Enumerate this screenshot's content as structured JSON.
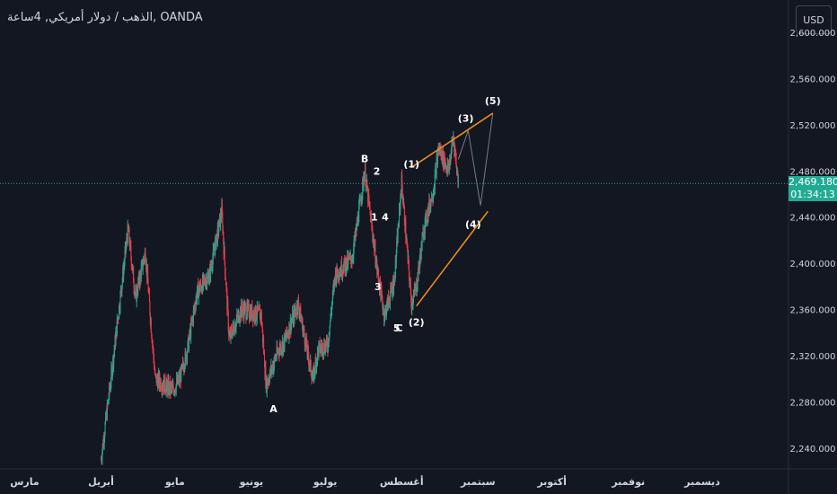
{
  "header": {
    "symbol_title": "الذهب / دولار أمريكي, 4ساعة, OANDA",
    "currency_label": "USD"
  },
  "last_price": {
    "value": "2,469.180",
    "countdown": "01:34:13"
  },
  "colors": {
    "background": "#131722",
    "bull": "#22ab94",
    "bear": "#f23645",
    "trendline": "#f7931a",
    "projection": "#787b86",
    "text": "#d1d4dc"
  },
  "chart_data": {
    "type": "candlestick",
    "title": "الذهب / دولار أمريكي, 4ساعة, OANDA",
    "y_axis": {
      "ylim": [
        2222,
        2628
      ],
      "ticks": [
        "2,240.000",
        "2,280.000",
        "2,320.000",
        "2,360.000",
        "2,400.000",
        "2,440.000",
        "2,480.000",
        "2,520.000",
        "2,560.000",
        "2,600.000"
      ],
      "tick_values": [
        2240,
        2280,
        2320,
        2360,
        2400,
        2440,
        2480,
        2520,
        2560,
        2600
      ]
    },
    "x_axis": {
      "labels": [
        "مارس",
        "أبريل",
        "مايو",
        "يونيو",
        "يوليو",
        "أغسطس",
        "سبتمبر",
        "أكتوبر",
        "نوفمبر",
        "ديسمبر"
      ],
      "label_dates": [
        "2024-03-01",
        "2024-04-01",
        "2024-05-01",
        "2024-06-01",
        "2024-07-01",
        "2024-08-01",
        "2024-09-01",
        "2024-10-01",
        "2024-11-01",
        "2024-12-01"
      ],
      "range": [
        "2024-02-20",
        "2025-01-05"
      ]
    },
    "price_path": [
      [
        "2024-04-01",
        2230
      ],
      [
        "2024-04-05",
        2300
      ],
      [
        "2024-04-12",
        2430
      ],
      [
        "2024-04-15",
        2370
      ],
      [
        "2024-04-19",
        2410
      ],
      [
        "2024-04-23",
        2300
      ],
      [
        "2024-04-30",
        2290
      ],
      [
        "2024-05-03",
        2300
      ],
      [
        "2024-05-06",
        2325
      ],
      [
        "2024-05-10",
        2375
      ],
      [
        "2024-05-15",
        2390
      ],
      [
        "2024-05-20",
        2445
      ],
      [
        "2024-05-23",
        2335
      ],
      [
        "2024-05-28",
        2360
      ],
      [
        "2024-06-05",
        2355
      ],
      [
        "2024-06-07",
        2295
      ],
      [
        "2024-06-12",
        2325
      ],
      [
        "2024-06-14",
        2330
      ],
      [
        "2024-06-20",
        2365
      ],
      [
        "2024-06-24",
        2320
      ],
      [
        "2024-06-26",
        2300
      ],
      [
        "2024-06-28",
        2325
      ],
      [
        "2024-07-02",
        2330
      ],
      [
        "2024-07-05",
        2390
      ],
      [
        "2024-07-12",
        2405
      ],
      [
        "2024-07-17",
        2480
      ],
      [
        "2024-07-22",
        2395
      ],
      [
        "2024-07-25",
        2355
      ],
      [
        "2024-07-29",
        2385
      ],
      [
        "2024-08-01",
        2470
      ],
      [
        "2024-08-05",
        2365
      ],
      [
        "2024-08-07",
        2380
      ],
      [
        "2024-08-10",
        2430
      ],
      [
        "2024-08-14",
        2465
      ],
      [
        "2024-08-16",
        2500
      ],
      [
        "2024-08-20",
        2480
      ],
      [
        "2024-08-22",
        2510
      ],
      [
        "2024-08-24",
        2470
      ]
    ],
    "markers": [
      {
        "label": "A",
        "date": "2024-06-10",
        "price": 2285,
        "pos": "below"
      },
      {
        "label": "B",
        "date": "2024-07-17",
        "price": 2480,
        "pos": "above"
      },
      {
        "label": "C",
        "date": "2024-07-31",
        "price": 2355,
        "pos": "below"
      },
      {
        "label": "1",
        "date": "2024-07-18",
        "price": 2440,
        "pos": "right"
      },
      {
        "label": "2",
        "date": "2024-07-19",
        "price": 2480,
        "pos": "right"
      },
      {
        "label": "3",
        "date": "2024-07-26",
        "price": 2380,
        "pos": "left"
      },
      {
        "label": "4",
        "date": "2024-07-29",
        "price": 2440,
        "pos": "left"
      },
      {
        "label": "5",
        "date": "2024-07-30",
        "price": 2355,
        "pos": "below"
      },
      {
        "label": "(1)",
        "date": "2024-08-05",
        "price": 2475,
        "pos": "above"
      },
      {
        "label": "(2)",
        "date": "2024-08-07",
        "price": 2360,
        "pos": "below"
      },
      {
        "label": "(3)",
        "date": "2024-08-27",
        "price": 2515,
        "pos": "above"
      },
      {
        "label": "(4)",
        "date": "2024-08-30",
        "price": 2445,
        "pos": "below"
      },
      {
        "label": "(5)",
        "date": "2024-09-07",
        "price": 2530,
        "pos": "above"
      }
    ],
    "trendlines": [
      {
        "from": [
          "2024-08-05",
          2483
        ],
        "to": [
          "2024-09-07",
          2530
        ]
      },
      {
        "from": [
          "2024-08-07",
          2363
        ],
        "to": [
          "2024-09-05",
          2445
        ]
      }
    ],
    "projection_path": [
      [
        "2024-08-24",
        2490
      ],
      [
        "2024-08-28",
        2515
      ],
      [
        "2024-09-02",
        2450
      ],
      [
        "2024-09-07",
        2530
      ]
    ],
    "last_price_line": 2469.18
  }
}
